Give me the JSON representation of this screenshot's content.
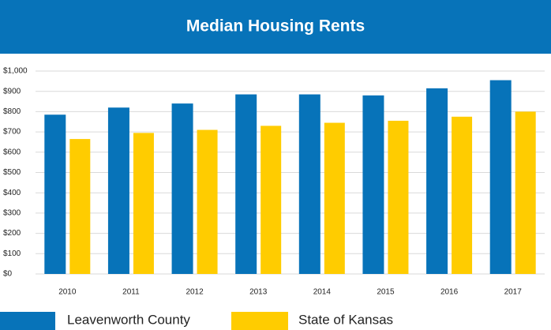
{
  "chart_data": {
    "type": "bar",
    "title": "Median Housing Rents",
    "categories": [
      "2010",
      "2011",
      "2012",
      "2013",
      "2014",
      "2015",
      "2016",
      "2017"
    ],
    "series": [
      {
        "name": "Leavenworth County",
        "color": "#0773b9",
        "values": [
          785,
          820,
          840,
          885,
          885,
          880,
          915,
          955
        ]
      },
      {
        "name": "State of Kansas",
        "color": "#ffcc00",
        "values": [
          665,
          695,
          710,
          730,
          745,
          755,
          775,
          800
        ]
      }
    ],
    "ylim": [
      0,
      1000
    ],
    "yticks": [
      {
        "value": 0,
        "label": "$0"
      },
      {
        "value": 100,
        "label": "$100"
      },
      {
        "value": 200,
        "label": "$200"
      },
      {
        "value": 300,
        "label": "$300"
      },
      {
        "value": 400,
        "label": "$400"
      },
      {
        "value": 500,
        "label": "$500"
      },
      {
        "value": 600,
        "label": "$600"
      },
      {
        "value": 700,
        "label": "$700"
      },
      {
        "value": 800,
        "label": "$800"
      },
      {
        "value": 900,
        "label": "$900"
      },
      {
        "value": 1000,
        "label": "$1,000"
      }
    ],
    "grid": true
  }
}
